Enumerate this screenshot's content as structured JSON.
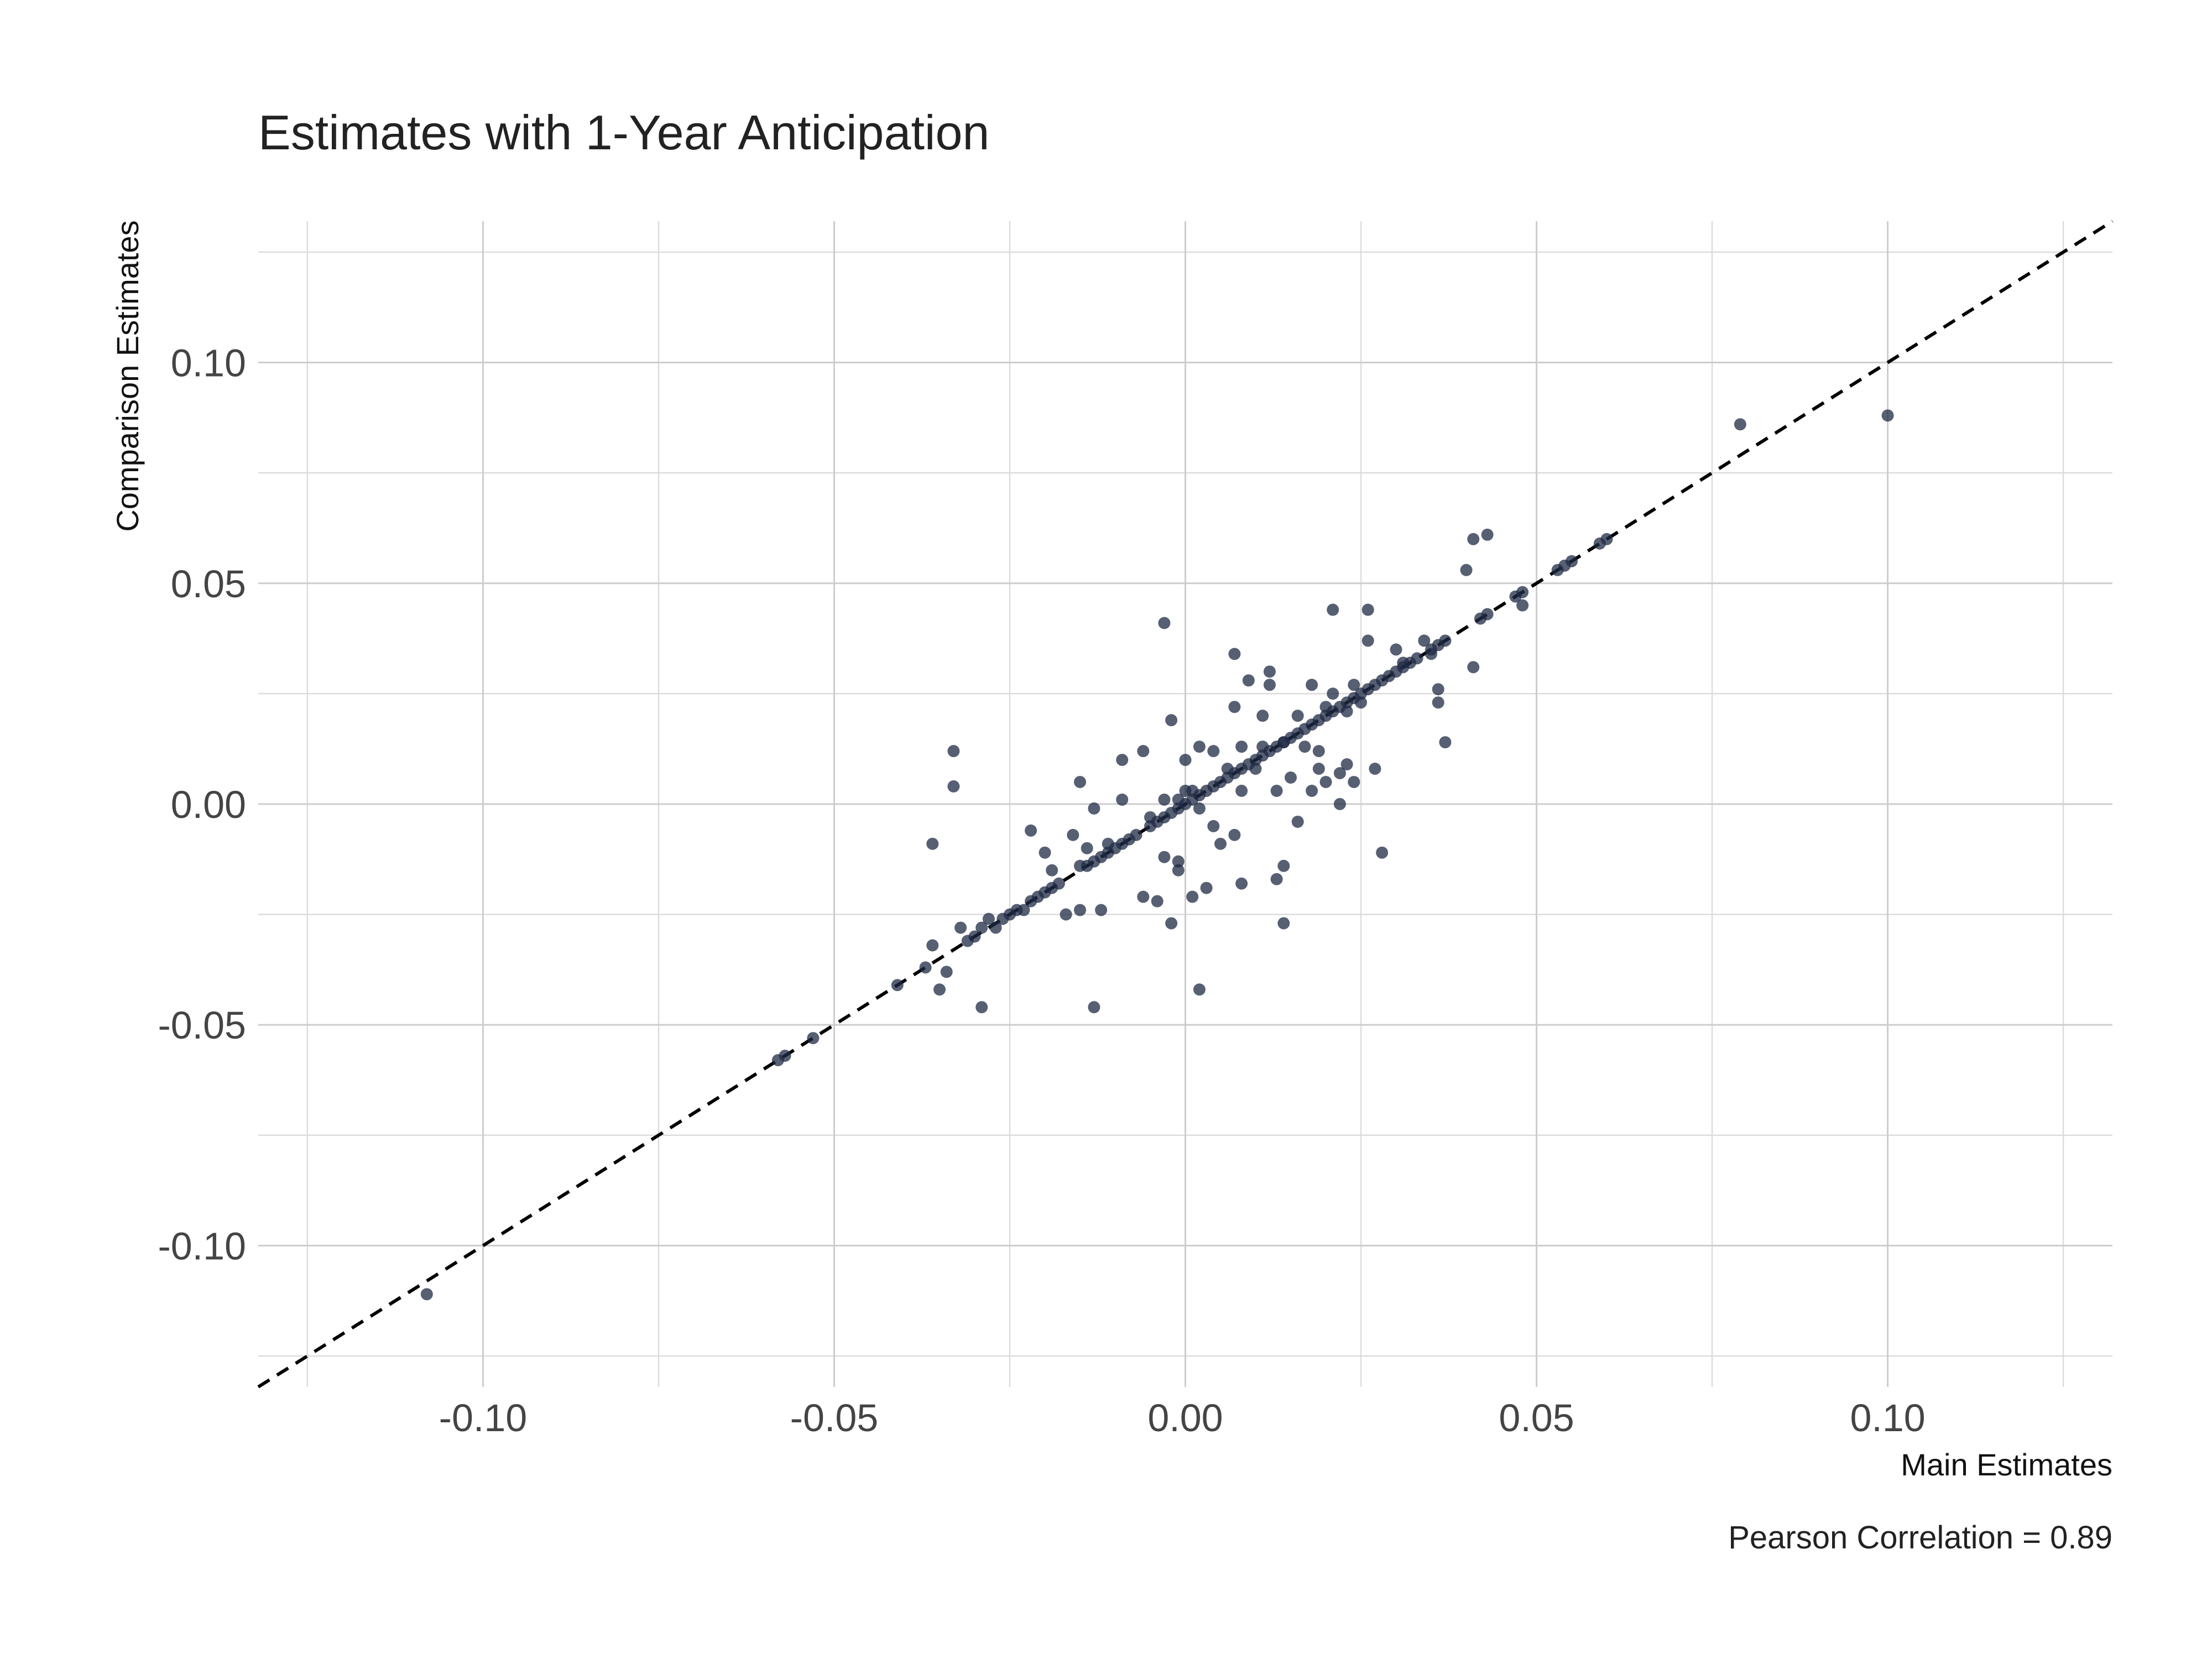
{
  "chart_data": {
    "type": "scatter",
    "title": "Estimates with 1-Year Anticipation",
    "xlabel": "Main Estimates",
    "ylabel": "Comparison Estimates",
    "caption": "Pearson Correlation = 0.89",
    "xlim": [
      -0.132,
      0.132
    ],
    "ylim": [
      -0.132,
      0.132
    ],
    "x_ticks": [
      -0.1,
      -0.05,
      0.0,
      0.05,
      0.1
    ],
    "x_tick_labels": [
      "-0.10",
      "-0.05",
      "0.00",
      "0.05",
      "0.10"
    ],
    "y_ticks": [
      -0.1,
      -0.05,
      0.0,
      0.05,
      0.1
    ],
    "y_tick_labels": [
      "-0.10",
      "-0.05",
      "0.00",
      "0.05",
      "0.10"
    ],
    "x_minor": [
      -0.125,
      -0.075,
      -0.025,
      0.025,
      0.075,
      0.125
    ],
    "y_minor": [
      -0.125,
      -0.075,
      -0.025,
      0.025,
      0.075,
      0.125
    ],
    "grid": true,
    "reference_line": "y = x (dashed)",
    "point_color": "#1f2a44",
    "points": [
      [
        -0.108,
        -0.111
      ],
      [
        0.1,
        0.088
      ],
      [
        0.079,
        0.086
      ],
      [
        -0.058,
        -0.058
      ],
      [
        -0.057,
        -0.057
      ],
      [
        -0.053,
        -0.053
      ],
      [
        -0.041,
        -0.041
      ],
      [
        -0.037,
        -0.037
      ],
      [
        -0.036,
        -0.032
      ],
      [
        -0.035,
        -0.042
      ],
      [
        -0.034,
        -0.038
      ],
      [
        -0.033,
        0.012
      ],
      [
        -0.033,
        0.004
      ],
      [
        -0.036,
        -0.009
      ],
      [
        -0.032,
        -0.028
      ],
      [
        -0.031,
        -0.031
      ],
      [
        -0.03,
        -0.03
      ],
      [
        -0.029,
        -0.028
      ],
      [
        -0.028,
        -0.026
      ],
      [
        -0.027,
        -0.028
      ],
      [
        -0.029,
        -0.046
      ],
      [
        -0.026,
        -0.026
      ],
      [
        -0.025,
        -0.025
      ],
      [
        -0.024,
        -0.024
      ],
      [
        -0.023,
        -0.024
      ],
      [
        -0.022,
        -0.022
      ],
      [
        -0.022,
        -0.006
      ],
      [
        -0.021,
        -0.021
      ],
      [
        -0.02,
        -0.02
      ],
      [
        -0.019,
        -0.019
      ],
      [
        -0.018,
        -0.018
      ],
      [
        -0.019,
        -0.015
      ],
      [
        -0.02,
        -0.011
      ],
      [
        -0.017,
        -0.025
      ],
      [
        -0.016,
        -0.007
      ],
      [
        -0.015,
        0.005
      ],
      [
        -0.015,
        -0.024
      ],
      [
        -0.015,
        -0.014
      ],
      [
        -0.014,
        -0.014
      ],
      [
        -0.014,
        -0.01
      ],
      [
        -0.013,
        -0.013
      ],
      [
        -0.013,
        -0.046
      ],
      [
        -0.013,
        -0.001
      ],
      [
        -0.012,
        -0.012
      ],
      [
        -0.011,
        -0.011
      ],
      [
        -0.012,
        -0.024
      ],
      [
        -0.011,
        -0.009
      ],
      [
        -0.01,
        -0.01
      ],
      [
        -0.009,
        -0.009
      ],
      [
        -0.009,
        0.001
      ],
      [
        -0.009,
        0.01
      ],
      [
        -0.008,
        -0.008
      ],
      [
        -0.007,
        -0.007
      ],
      [
        -0.006,
        -0.021
      ],
      [
        -0.006,
        0.012
      ],
      [
        -0.005,
        -0.005
      ],
      [
        -0.005,
        -0.003
      ],
      [
        -0.004,
        -0.022
      ],
      [
        -0.004,
        -0.004
      ],
      [
        -0.003,
        -0.003
      ],
      [
        -0.003,
        0.041
      ],
      [
        -0.003,
        -0.012
      ],
      [
        -0.003,
        0.001
      ],
      [
        -0.002,
        -0.002
      ],
      [
        -0.002,
        -0.027
      ],
      [
        -0.002,
        0.019
      ],
      [
        -0.001,
        -0.001
      ],
      [
        -0.001,
        -0.013
      ],
      [
        -0.001,
        -0.015
      ],
      [
        -0.001,
        0.001
      ],
      [
        0.0,
        0.0
      ],
      [
        0.0,
        0.01
      ],
      [
        0.0,
        0.003
      ],
      [
        0.001,
        0.001
      ],
      [
        0.001,
        -0.021
      ],
      [
        0.001,
        0.003
      ],
      [
        0.002,
        0.002
      ],
      [
        0.002,
        0.013
      ],
      [
        0.002,
        -0.001
      ],
      [
        0.002,
        -0.042
      ],
      [
        0.003,
        0.003
      ],
      [
        0.003,
        -0.019
      ],
      [
        0.004,
        0.004
      ],
      [
        0.004,
        0.012
      ],
      [
        0.004,
        -0.005
      ],
      [
        0.005,
        0.005
      ],
      [
        0.005,
        -0.009
      ],
      [
        0.006,
        0.006
      ],
      [
        0.006,
        0.008
      ],
      [
        0.007,
        0.007
      ],
      [
        0.007,
        0.022
      ],
      [
        0.007,
        -0.007
      ],
      [
        0.007,
        0.034
      ],
      [
        0.008,
        0.008
      ],
      [
        0.008,
        -0.018
      ],
      [
        0.008,
        0.013
      ],
      [
        0.008,
        0.003
      ],
      [
        0.009,
        0.009
      ],
      [
        0.009,
        0.028
      ],
      [
        0.01,
        0.01
      ],
      [
        0.01,
        0.008
      ],
      [
        0.011,
        0.011
      ],
      [
        0.011,
        0.013
      ],
      [
        0.011,
        0.02
      ],
      [
        0.012,
        0.012
      ],
      [
        0.012,
        0.027
      ],
      [
        0.012,
        0.03
      ],
      [
        0.013,
        0.013
      ],
      [
        0.013,
        0.003
      ],
      [
        0.013,
        -0.017
      ],
      [
        0.014,
        0.014
      ],
      [
        0.014,
        0.014
      ],
      [
        0.014,
        -0.014
      ],
      [
        0.014,
        -0.027
      ],
      [
        0.015,
        0.015
      ],
      [
        0.015,
        0.006
      ],
      [
        0.016,
        0.016
      ],
      [
        0.016,
        0.02
      ],
      [
        0.016,
        -0.004
      ],
      [
        0.017,
        0.017
      ],
      [
        0.017,
        0.013
      ],
      [
        0.018,
        0.018
      ],
      [
        0.018,
        0.003
      ],
      [
        0.018,
        0.027
      ],
      [
        0.019,
        0.019
      ],
      [
        0.019,
        0.008
      ],
      [
        0.019,
        0.012
      ],
      [
        0.02,
        0.02
      ],
      [
        0.02,
        0.022
      ],
      [
        0.02,
        0.005
      ],
      [
        0.021,
        0.021
      ],
      [
        0.021,
        0.025
      ],
      [
        0.021,
        0.044
      ],
      [
        0.022,
        0.022
      ],
      [
        0.022,
        0.0
      ],
      [
        0.022,
        0.007
      ],
      [
        0.023,
        0.023
      ],
      [
        0.023,
        0.009
      ],
      [
        0.023,
        0.021
      ],
      [
        0.024,
        0.024
      ],
      [
        0.024,
        0.027
      ],
      [
        0.024,
        0.005
      ],
      [
        0.025,
        0.025
      ],
      [
        0.025,
        0.023
      ],
      [
        0.026,
        0.026
      ],
      [
        0.026,
        0.044
      ],
      [
        0.026,
        0.037
      ],
      [
        0.027,
        0.027
      ],
      [
        0.027,
        0.008
      ],
      [
        0.028,
        0.028
      ],
      [
        0.028,
        -0.011
      ],
      [
        0.029,
        0.029
      ],
      [
        0.03,
        0.03
      ],
      [
        0.03,
        0.035
      ],
      [
        0.031,
        0.031
      ],
      [
        0.031,
        0.032
      ],
      [
        0.032,
        0.032
      ],
      [
        0.033,
        0.033
      ],
      [
        0.034,
        0.037
      ],
      [
        0.035,
        0.035
      ],
      [
        0.035,
        0.034
      ],
      [
        0.036,
        0.036
      ],
      [
        0.036,
        0.026
      ],
      [
        0.036,
        0.023
      ],
      [
        0.037,
        0.014
      ],
      [
        0.037,
        0.037
      ],
      [
        0.04,
        0.053
      ],
      [
        0.041,
        0.06
      ],
      [
        0.041,
        0.031
      ],
      [
        0.042,
        0.042
      ],
      [
        0.043,
        0.061
      ],
      [
        0.043,
        0.043
      ],
      [
        0.047,
        0.047
      ],
      [
        0.048,
        0.048
      ],
      [
        0.048,
        0.045
      ],
      [
        0.053,
        0.053
      ],
      [
        0.054,
        0.054
      ],
      [
        0.055,
        0.055
      ],
      [
        0.059,
        0.059
      ],
      [
        0.06,
        0.06
      ]
    ]
  }
}
